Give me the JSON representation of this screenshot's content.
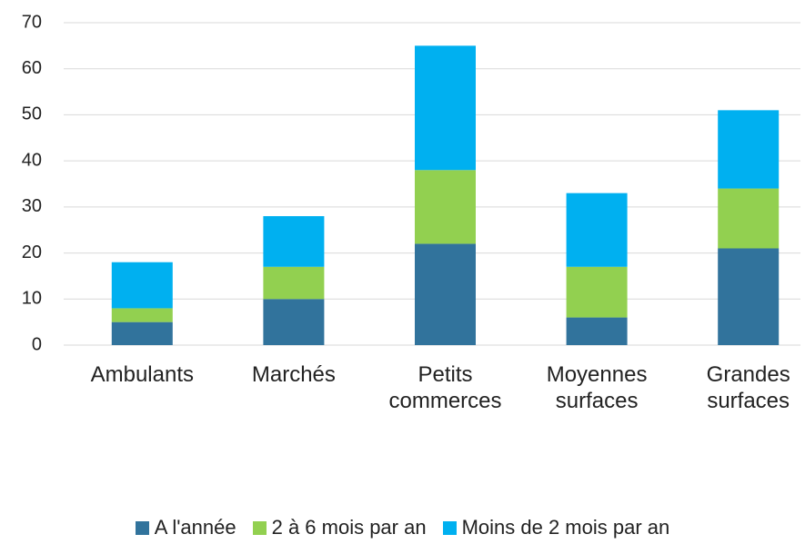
{
  "chart_data": {
    "type": "stacked_bar",
    "categories": [
      "Ambulants",
      "Marchés",
      "Petits commerces",
      "Moyennes surfaces",
      "Grandes surfaces"
    ],
    "series": [
      {
        "name": "A l'année",
        "color": "#31739c",
        "values": [
          5,
          10,
          22,
          6,
          21
        ]
      },
      {
        "name": "2 à 6 mois par an",
        "color": "#92d050",
        "values": [
          3,
          7,
          16,
          11,
          13
        ]
      },
      {
        "name": "Moins de 2 mois par an",
        "color": "#00b0f0",
        "values": [
          10,
          11,
          27,
          16,
          17
        ]
      }
    ],
    "ylim": [
      0,
      70
    ],
    "yticks": [
      0,
      10,
      20,
      30,
      40,
      50,
      60,
      70
    ],
    "grid": true,
    "legend": "bottom"
  }
}
